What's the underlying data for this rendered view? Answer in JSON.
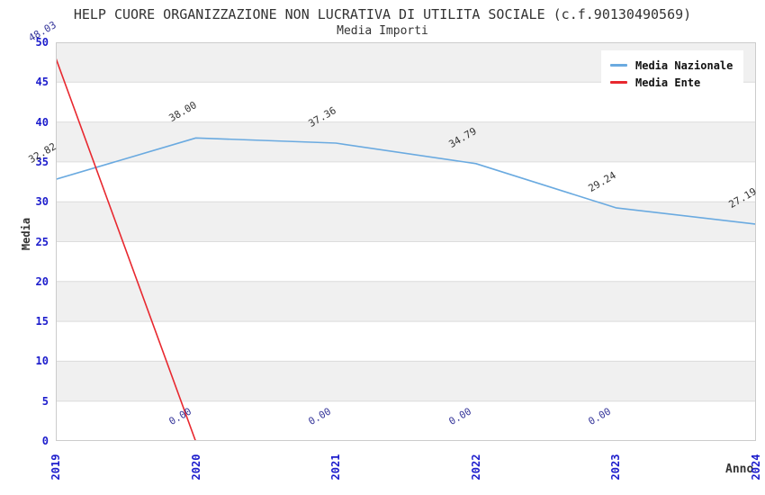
{
  "header": {
    "title": "HELP CUORE ORGANIZZAZIONE NON LUCRATIVA DI UTILITA SOCIALE (c.f.90130490569)",
    "subtitle": "Media Importi"
  },
  "legend": {
    "items": [
      {
        "label": "Media Nazionale",
        "color": "#6aaae0"
      },
      {
        "label": "Media Ente",
        "color": "#e8282f"
      }
    ]
  },
  "axes": {
    "y_label": "Media",
    "x_label": "Anno",
    "yticks": [
      "0",
      "5",
      "10",
      "15",
      "20",
      "25",
      "30",
      "35",
      "40",
      "45",
      "50"
    ],
    "xticks": [
      "2019",
      "2020",
      "2021",
      "2022",
      "2023",
      "2024"
    ],
    "tick_color": "#1c1ccc"
  },
  "chart_data": {
    "type": "line",
    "title": "HELP CUORE ORGANIZZAZIONE NON LUCRATIVA DI UTILITA SOCIALE (c.f.90130490569)",
    "subtitle": "Media Importi",
    "xlabel": "Anno",
    "ylabel": "Media",
    "x": [
      2019,
      2020,
      2021,
      2022,
      2023,
      2024
    ],
    "xlim": [
      2019,
      2024
    ],
    "ylim": [
      0,
      50
    ],
    "ytick_step": 5,
    "grid": "horizontal-bands",
    "legend_position": "top-right",
    "series": [
      {
        "name": "Media Nazionale",
        "color": "#6aaae0",
        "label_color": "#333333",
        "x": [
          2019,
          2020,
          2021,
          2022,
          2023,
          2024
        ],
        "values": [
          32.82,
          38.0,
          37.36,
          34.79,
          29.24,
          27.19
        ],
        "point_labels": [
          "32.82",
          "38.00",
          "37.36",
          "34.79",
          "29.24",
          "27.19"
        ]
      },
      {
        "name": "Media Ente",
        "color": "#e8282f",
        "label_color": "#333399",
        "x": [
          2019,
          2020,
          2021,
          2022,
          2023
        ],
        "values": [
          48.03,
          0.0,
          0.0,
          0.0,
          0.0
        ],
        "point_labels": [
          "48.03",
          "0.00",
          "0.00",
          "0.00",
          "0.00"
        ]
      }
    ],
    "plot_style": {
      "band_color": "#f0f0f0",
      "band_alt_color": "#ffffff",
      "grid_color": "#dcdcdc",
      "spine_color": "#cccccc"
    }
  }
}
